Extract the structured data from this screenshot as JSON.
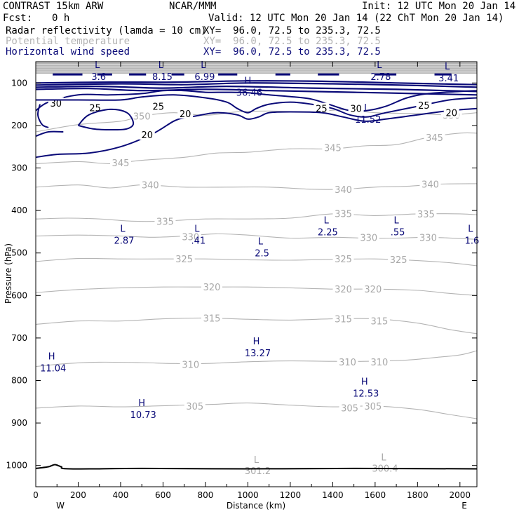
{
  "header": {
    "model": "CONTRAST 15km ARW",
    "center": "NCAR/MMM",
    "init": "Init: 12 UTC Mon 20 Jan 14",
    "fcst_label": "Fcst:",
    "fcst_value": "0 h",
    "valid": "Valid: 12 UTC Mon 20 Jan 14 (22 ChT Mon 20 Jan 14)"
  },
  "legend": [
    {
      "name": "Radar reflectivity (lamda = 10 cm)",
      "xy": "XY=  96.0, 72.5 to 235.3, 72.5",
      "color": "#000000"
    },
    {
      "name": "Potential temperature",
      "xy": "XY=  96.0, 72.5 to 235.3, 72.5",
      "color": "#b4b4b4"
    },
    {
      "name": "Horizontal wind speed",
      "xy": "XY=  96.0, 72.5 to 235.3, 72.5",
      "color": "#0a0a78"
    }
  ],
  "chart_data": {
    "type": "contour",
    "xlabel": "Distance (km)",
    "ylabel": "Pressure (hPa)",
    "xlim": [
      0,
      2080
    ],
    "ylim": [
      1050,
      50
    ],
    "x_ticks": [
      0,
      200,
      400,
      600,
      800,
      1000,
      1200,
      1400,
      1600,
      1800,
      2000
    ],
    "x_tick_labels": [
      "0",
      "200",
      "400",
      "600",
      "800",
      "1000",
      "1200",
      "1400",
      "1600",
      "1800",
      "2000"
    ],
    "y_ticks": [
      100,
      200,
      300,
      400,
      500,
      600,
      700,
      800,
      900,
      1000
    ],
    "y_tick_labels": [
      "100",
      "200",
      "300",
      "400",
      "500",
      "600",
      "700",
      "800",
      "900",
      "1000"
    ],
    "left_end_label": "W",
    "right_end_label": "E",
    "theta_contours": [
      {
        "label": "350",
        "points": [
          [
            0,
            215
          ],
          [
            200,
            198
          ],
          [
            400,
            190
          ],
          [
            500,
            178
          ],
          [
            650,
            170
          ],
          [
            800,
            176
          ],
          [
            950,
            168
          ],
          [
            1100,
            166
          ],
          [
            1300,
            168
          ],
          [
            1450,
            163
          ],
          [
            1600,
            170
          ],
          [
            1800,
            172
          ],
          [
            1950,
            175
          ],
          [
            2080,
            170
          ]
        ],
        "label_at": [
          [
            500,
            178
          ],
          [
            1960,
            175
          ]
        ]
      },
      {
        "label": "345",
        "points": [
          [
            0,
            290
          ],
          [
            200,
            285
          ],
          [
            350,
            290
          ],
          [
            500,
            282
          ],
          [
            700,
            275
          ],
          [
            850,
            265
          ],
          [
            1000,
            263
          ],
          [
            1200,
            255
          ],
          [
            1400,
            255
          ],
          [
            1550,
            248
          ],
          [
            1700,
            245
          ],
          [
            1850,
            228
          ],
          [
            2000,
            218
          ],
          [
            2080,
            218
          ]
        ],
        "label_at": [
          [
            400,
            288
          ],
          [
            1400,
            252
          ],
          [
            1880,
            228
          ]
        ]
      },
      {
        "label": "340",
        "points": [
          [
            0,
            345
          ],
          [
            200,
            340
          ],
          [
            350,
            347
          ],
          [
            500,
            340
          ],
          [
            700,
            345
          ],
          [
            900,
            345
          ],
          [
            1100,
            345
          ],
          [
            1300,
            350
          ],
          [
            1450,
            350
          ],
          [
            1600,
            345
          ],
          [
            1750,
            343
          ],
          [
            1900,
            338
          ],
          [
            2080,
            337
          ]
        ],
        "label_at": [
          [
            540,
            340
          ],
          [
            1450,
            350
          ],
          [
            1860,
            338
          ]
        ]
      },
      {
        "label": "335",
        "points": [
          [
            0,
            420
          ],
          [
            150,
            418
          ],
          [
            300,
            420
          ],
          [
            450,
            425
          ],
          [
            600,
            425
          ],
          [
            800,
            420
          ],
          [
            1000,
            420
          ],
          [
            1200,
            418
          ],
          [
            1400,
            408
          ],
          [
            1600,
            412
          ],
          [
            1800,
            408
          ],
          [
            2000,
            408
          ],
          [
            2080,
            410
          ]
        ],
        "label_at": [
          [
            610,
            425
          ],
          [
            1450,
            407
          ],
          [
            1840,
            408
          ]
        ]
      },
      {
        "label": "330",
        "points": [
          [
            0,
            460
          ],
          [
            200,
            458
          ],
          [
            400,
            460
          ],
          [
            550,
            463
          ],
          [
            700,
            460
          ],
          [
            850,
            455
          ],
          [
            1000,
            458
          ],
          [
            1200,
            465
          ],
          [
            1400,
            463
          ],
          [
            1550,
            465
          ],
          [
            1700,
            465
          ],
          [
            1850,
            463
          ],
          [
            2000,
            466
          ],
          [
            2080,
            468
          ]
        ],
        "label_at": [
          [
            730,
            462
          ],
          [
            1570,
            463
          ],
          [
            1850,
            463
          ]
        ]
      },
      {
        "label": "325",
        "points": [
          [
            0,
            520
          ],
          [
            200,
            513
          ],
          [
            400,
            514
          ],
          [
            600,
            514
          ],
          [
            800,
            514
          ],
          [
            1000,
            516
          ],
          [
            1200,
            517
          ],
          [
            1400,
            515
          ],
          [
            1600,
            514
          ],
          [
            1800,
            518
          ],
          [
            1950,
            523
          ],
          [
            2080,
            530
          ]
        ],
        "label_at": [
          [
            700,
            514
          ],
          [
            1450,
            514
          ],
          [
            1710,
            515
          ]
        ]
      },
      {
        "label": "320",
        "points": [
          [
            0,
            593
          ],
          [
            200,
            586
          ],
          [
            400,
            582
          ],
          [
            600,
            580
          ],
          [
            800,
            580
          ],
          [
            1000,
            580
          ],
          [
            1200,
            582
          ],
          [
            1400,
            585
          ],
          [
            1600,
            585
          ],
          [
            1800,
            588
          ],
          [
            1950,
            595
          ],
          [
            2080,
            600
          ]
        ],
        "label_at": [
          [
            830,
            580
          ],
          [
            1450,
            585
          ],
          [
            1590,
            585
          ]
        ]
      },
      {
        "label": "315",
        "points": [
          [
            0,
            668
          ],
          [
            200,
            660
          ],
          [
            400,
            660
          ],
          [
            600,
            655
          ],
          [
            800,
            653
          ],
          [
            1000,
            656
          ],
          [
            1200,
            658
          ],
          [
            1400,
            655
          ],
          [
            1600,
            655
          ],
          [
            1800,
            665
          ],
          [
            1950,
            680
          ],
          [
            2080,
            690
          ]
        ],
        "label_at": [
          [
            830,
            653
          ],
          [
            1450,
            655
          ],
          [
            1620,
            660
          ]
        ]
      },
      {
        "label": "310",
        "points": [
          [
            0,
            767
          ],
          [
            150,
            760
          ],
          [
            300,
            757
          ],
          [
            500,
            758
          ],
          [
            650,
            760
          ],
          [
            800,
            760
          ],
          [
            1000,
            756
          ],
          [
            1200,
            754
          ],
          [
            1400,
            755
          ],
          [
            1550,
            755
          ],
          [
            1750,
            752
          ],
          [
            1900,
            745
          ],
          [
            2000,
            740
          ],
          [
            2080,
            730
          ]
        ],
        "label_at": [
          [
            730,
            762
          ],
          [
            1470,
            756
          ],
          [
            1620,
            756
          ]
        ]
      },
      {
        "label": "305",
        "points": [
          [
            0,
            865
          ],
          [
            200,
            860
          ],
          [
            400,
            862
          ],
          [
            550,
            860
          ],
          [
            700,
            858
          ],
          [
            850,
            856
          ],
          [
            1000,
            853
          ],
          [
            1200,
            858
          ],
          [
            1400,
            862
          ],
          [
            1600,
            860
          ],
          [
            1800,
            868
          ],
          [
            1950,
            880
          ],
          [
            2080,
            890
          ]
        ],
        "label_at": [
          [
            750,
            860
          ],
          [
            1480,
            864
          ],
          [
            1590,
            860
          ]
        ]
      }
    ],
    "theta_minima": [
      {
        "mark": "L",
        "value": "301.2",
        "x": 1040,
        "y": 1010
      },
      {
        "mark": "L",
        "value": "300.4",
        "x": 1640,
        "y": 1005
      }
    ],
    "wind_contours": [
      {
        "label": "30",
        "points": [
          [
            0,
            165
          ],
          [
            60,
            145
          ],
          [
            200,
            128
          ],
          [
            350,
            128
          ],
          [
            500,
            125
          ],
          [
            600,
            118
          ],
          [
            700,
            118
          ],
          [
            800,
            122
          ],
          [
            900,
            122
          ],
          [
            1000,
            123
          ],
          [
            1100,
            128
          ],
          [
            1200,
            132
          ],
          [
            1300,
            138
          ],
          [
            1380,
            150
          ],
          [
            1480,
            165
          ],
          [
            1560,
            165
          ],
          [
            1650,
            155
          ],
          [
            1750,
            135
          ],
          [
            1850,
            125
          ],
          [
            2000,
            120
          ],
          [
            2080,
            118
          ]
        ],
        "label_at": [
          [
            95,
            147
          ],
          [
            1510,
            160
          ]
        ]
      },
      {
        "label": "25",
        "points": [
          [
            0,
            140
          ],
          [
            200,
            140
          ],
          [
            400,
            140
          ],
          [
            500,
            133
          ],
          [
            650,
            128
          ],
          [
            800,
            135
          ],
          [
            900,
            145
          ],
          [
            950,
            160
          ],
          [
            1000,
            170
          ],
          [
            1040,
            160
          ],
          [
            1100,
            150
          ],
          [
            1200,
            145
          ],
          [
            1300,
            150
          ],
          [
            1400,
            160
          ],
          [
            1480,
            175
          ],
          [
            1560,
            180
          ],
          [
            1650,
            170
          ],
          [
            1800,
            155
          ],
          [
            1950,
            140
          ],
          [
            2080,
            135
          ]
        ],
        "label_at": [
          [
            280,
            158
          ],
          [
            578,
            155
          ],
          [
            1347,
            160
          ],
          [
            1830,
            152
          ]
        ]
      },
      {
        "label": "20",
        "points": [
          [
            0,
            275
          ],
          [
            100,
            268
          ],
          [
            250,
            265
          ],
          [
            400,
            250
          ],
          [
            550,
            220
          ],
          [
            650,
            190
          ],
          [
            700,
            182
          ],
          [
            750,
            178
          ],
          [
            850,
            170
          ],
          [
            950,
            175
          ],
          [
            1000,
            185
          ],
          [
            1050,
            180
          ],
          [
            1100,
            170
          ],
          [
            1200,
            168
          ],
          [
            1350,
            170
          ],
          [
            1450,
            180
          ],
          [
            1550,
            190
          ],
          [
            1650,
            185
          ],
          [
            1800,
            175
          ],
          [
            1950,
            165
          ],
          [
            2080,
            160
          ]
        ],
        "label_at": [
          [
            525,
            222
          ],
          [
            705,
            172
          ],
          [
            1960,
            170
          ]
        ]
      },
      {
        "label": "",
        "points": [
          [
            200,
            200
          ],
          [
            250,
            175
          ],
          [
            350,
            162
          ],
          [
            430,
            170
          ],
          [
            460,
            195
          ],
          [
            430,
            208
          ],
          [
            360,
            210
          ],
          [
            270,
            208
          ],
          [
            200,
            200
          ]
        ],
        "label_at": []
      },
      {
        "label": "",
        "points": [
          [
            0,
            225
          ],
          [
            60,
            215
          ],
          [
            130,
            215
          ]
        ],
        "label_at": []
      },
      {
        "label": "",
        "points": [
          [
            20,
            150
          ],
          [
            10,
            175
          ],
          [
            30,
            198
          ],
          [
            60,
            205
          ]
        ],
        "label_at": []
      }
    ],
    "wind_extrema": [
      {
        "mark": "L",
        "value": "3.6",
        "x": 290,
        "y": 85
      },
      {
        "mark": "L",
        "value": "8.15",
        "x": 590,
        "y": 85
      },
      {
        "mark": "L",
        "value": "6.99",
        "x": 790,
        "y": 85
      },
      {
        "mark": "H",
        "value": "36.46",
        "x": 1000,
        "y": 122
      },
      {
        "mark": "L",
        "value": "2.78",
        "x": 1620,
        "y": 85
      },
      {
        "mark": "L",
        "value": "3.41",
        "x": 1940,
        "y": 88
      },
      {
        "mark": "L",
        "value": "11.52",
        "x": 1560,
        "y": 185
      },
      {
        "mark": "L",
        "value": "2.87",
        "x": 410,
        "y": 470
      },
      {
        "mark": "L",
        "value": ".41",
        "x": 760,
        "y": 470
      },
      {
        "mark": "L",
        "value": "2.5",
        "x": 1060,
        "y": 500
      },
      {
        "mark": "L",
        "value": "2.25",
        "x": 1370,
        "y": 450
      },
      {
        "mark": "L",
        "value": ".55",
        "x": 1700,
        "y": 450
      },
      {
        "mark": "L",
        "value": "1.6",
        "x": 2050,
        "y": 470
      },
      {
        "mark": "H",
        "value": "11.04",
        "x": 75,
        "y": 770
      },
      {
        "mark": "H",
        "value": "13.27",
        "x": 1040,
        "y": 735
      },
      {
        "mark": "H",
        "value": "12.53",
        "x": 1550,
        "y": 830
      },
      {
        "mark": "H",
        "value": "10.73",
        "x": 500,
        "y": 880
      }
    ],
    "surface_pressure": [
      [
        0,
        1007
      ],
      [
        60,
        1003
      ],
      [
        90,
        998
      ],
      [
        120,
        1003
      ],
      [
        160,
        1008
      ],
      [
        500,
        1007
      ],
      [
        1000,
        1008
      ],
      [
        1500,
        1007
      ],
      [
        2080,
        1008
      ]
    ]
  }
}
